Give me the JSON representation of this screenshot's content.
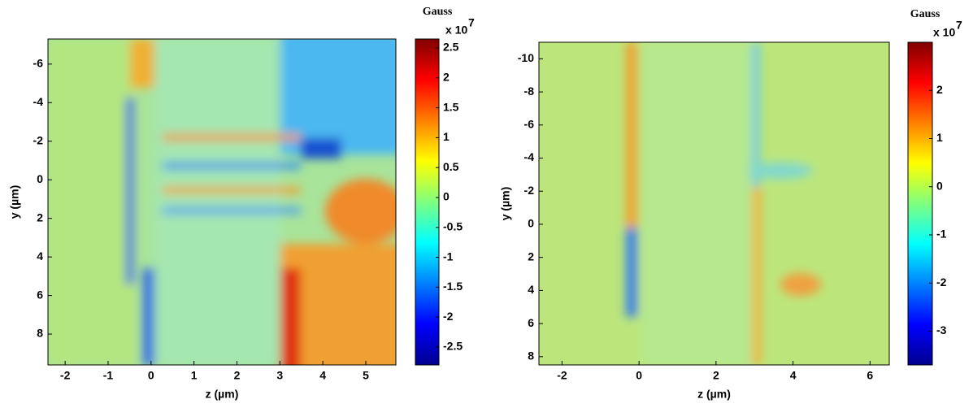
{
  "chart_data": [
    {
      "type": "heatmap",
      "x_label": "z (µm)",
      "y_label": "y (µm)",
      "xlim": [
        -2.4,
        5.7
      ],
      "xticks": [
        -2,
        -1,
        0,
        1,
        2,
        3,
        4,
        5
      ],
      "ylim": [
        9.6,
        -7.3
      ],
      "yticks": [
        -6,
        -4,
        -2,
        0,
        2,
        4,
        6,
        8
      ],
      "y_reversed": true,
      "colorbar_label": "Gauss",
      "colorbar_multiplier": "x 10",
      "colorbar_exponent": "7",
      "clim": [
        -2.8,
        2.65
      ],
      "cticks": [
        -2.5,
        -2,
        -1.5,
        -1,
        -0.5,
        0,
        0.5,
        1,
        1.5,
        2,
        2.5
      ],
      "colormap": "jet"
    },
    {
      "type": "heatmap",
      "x_label": "z (µm)",
      "y_label": "y (µm)",
      "xlim": [
        -2.6,
        6.5
      ],
      "xticks": [
        -2,
        0,
        2,
        4,
        6
      ],
      "ylim": [
        8.5,
        -11
      ],
      "yticks": [
        -10,
        -8,
        -6,
        -4,
        -2,
        0,
        2,
        4,
        6,
        8
      ],
      "y_reversed": true,
      "colorbar_label": "Gauss",
      "colorbar_multiplier": "x 10",
      "colorbar_exponent": "7",
      "clim": [
        -3.7,
        3
      ],
      "cticks": [
        -3,
        -2,
        -1,
        0,
        1,
        2
      ],
      "colormap": "jet"
    }
  ]
}
